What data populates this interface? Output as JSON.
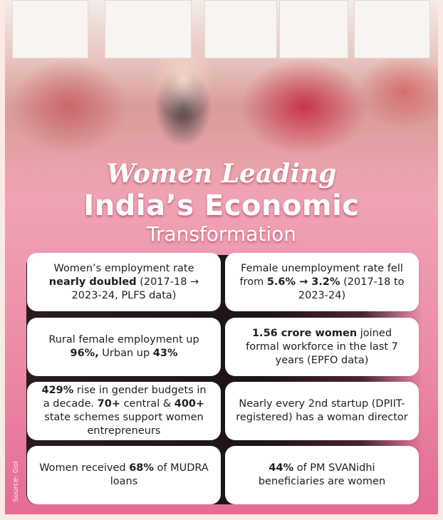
{
  "title": {
    "line1": "Women Leading",
    "line2": "India’s Economic",
    "line3": "Transformation"
  },
  "cards": [
    {
      "parts": [
        {
          "t": "Women’s employment rate ",
          "b": false
        },
        {
          "t": "nearly doubled",
          "b": true
        },
        {
          "t": " (2017-18 → 2023-24, PLFS data)",
          "b": false
        }
      ]
    },
    {
      "parts": [
        {
          "t": "Female unemployment rate fell from ",
          "b": false
        },
        {
          "t": "5.6% → 3.2%",
          "b": true
        },
        {
          "t": " (2017-18 to 2023-24)",
          "b": false
        }
      ]
    },
    {
      "parts": [
        {
          "t": "Rural female employment up ",
          "b": false
        },
        {
          "t": "96%,",
          "b": true
        },
        {
          "t": " Urban up ",
          "b": false
        },
        {
          "t": "43%",
          "b": true
        }
      ]
    },
    {
      "parts": [
        {
          "t": "1.56 crore women",
          "b": true
        },
        {
          "t": " joined formal workforce in the last 7 years (EPFO data)",
          "b": false
        }
      ]
    },
    {
      "parts": [
        {
          "t": "429%",
          "b": true
        },
        {
          "t": " rise in gender budgets in a decade. ",
          "b": false
        },
        {
          "t": "70+",
          "b": true
        },
        {
          "t": " central & ",
          "b": false
        },
        {
          "t": "400+",
          "b": true
        },
        {
          "t": " state schemes support women entrepreneurs",
          "b": false
        }
      ]
    },
    {
      "parts": [
        {
          "t": "Nearly every 2nd startup (DPIIT-registered) has a woman director",
          "b": false
        }
      ]
    },
    {
      "parts": [
        {
          "t": "Women received ",
          "b": false
        },
        {
          "t": "68%",
          "b": true
        },
        {
          "t": " of MUDRA loans",
          "b": false
        }
      ]
    },
    {
      "parts": [
        {
          "t": "44%",
          "b": true
        },
        {
          "t": " of PM SVANidhi beneficiaries are women",
          "b": false
        }
      ]
    }
  ],
  "source": "Source: GoI"
}
